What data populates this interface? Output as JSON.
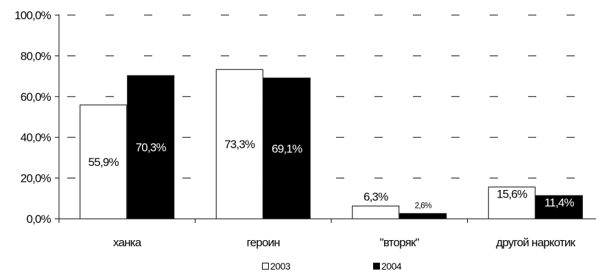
{
  "chart_data": {
    "type": "bar",
    "categories": [
      "ханка",
      "героин",
      "\"вторяк\"",
      "другой наркотик"
    ],
    "series": [
      {
        "name": "2003",
        "values": [
          55.9,
          73.3,
          6.3,
          15.6
        ],
        "labels": [
          "55,9%",
          "73,3%",
          "6,3%",
          "15,6%"
        ],
        "fill": "#ffffff",
        "stroke": "#000000",
        "label_color": "#000000"
      },
      {
        "name": "2004",
        "values": [
          70.3,
          69.1,
          2.6,
          11.4
        ],
        "labels": [
          "70,3%",
          "69,1%",
          "2,6%",
          "11,4%"
        ],
        "fill": "#000000",
        "stroke": "#000000",
        "label_color": "#ffffff"
      }
    ],
    "ylim": [
      0,
      100
    ],
    "yticks": [
      0,
      20,
      40,
      60,
      80,
      100
    ],
    "ytick_labels": [
      "0,0%",
      "20,0%",
      "40,0%",
      "60,0%",
      "80,0%",
      "100,0%"
    ],
    "grid": "dashed",
    "legend": "bottom"
  }
}
